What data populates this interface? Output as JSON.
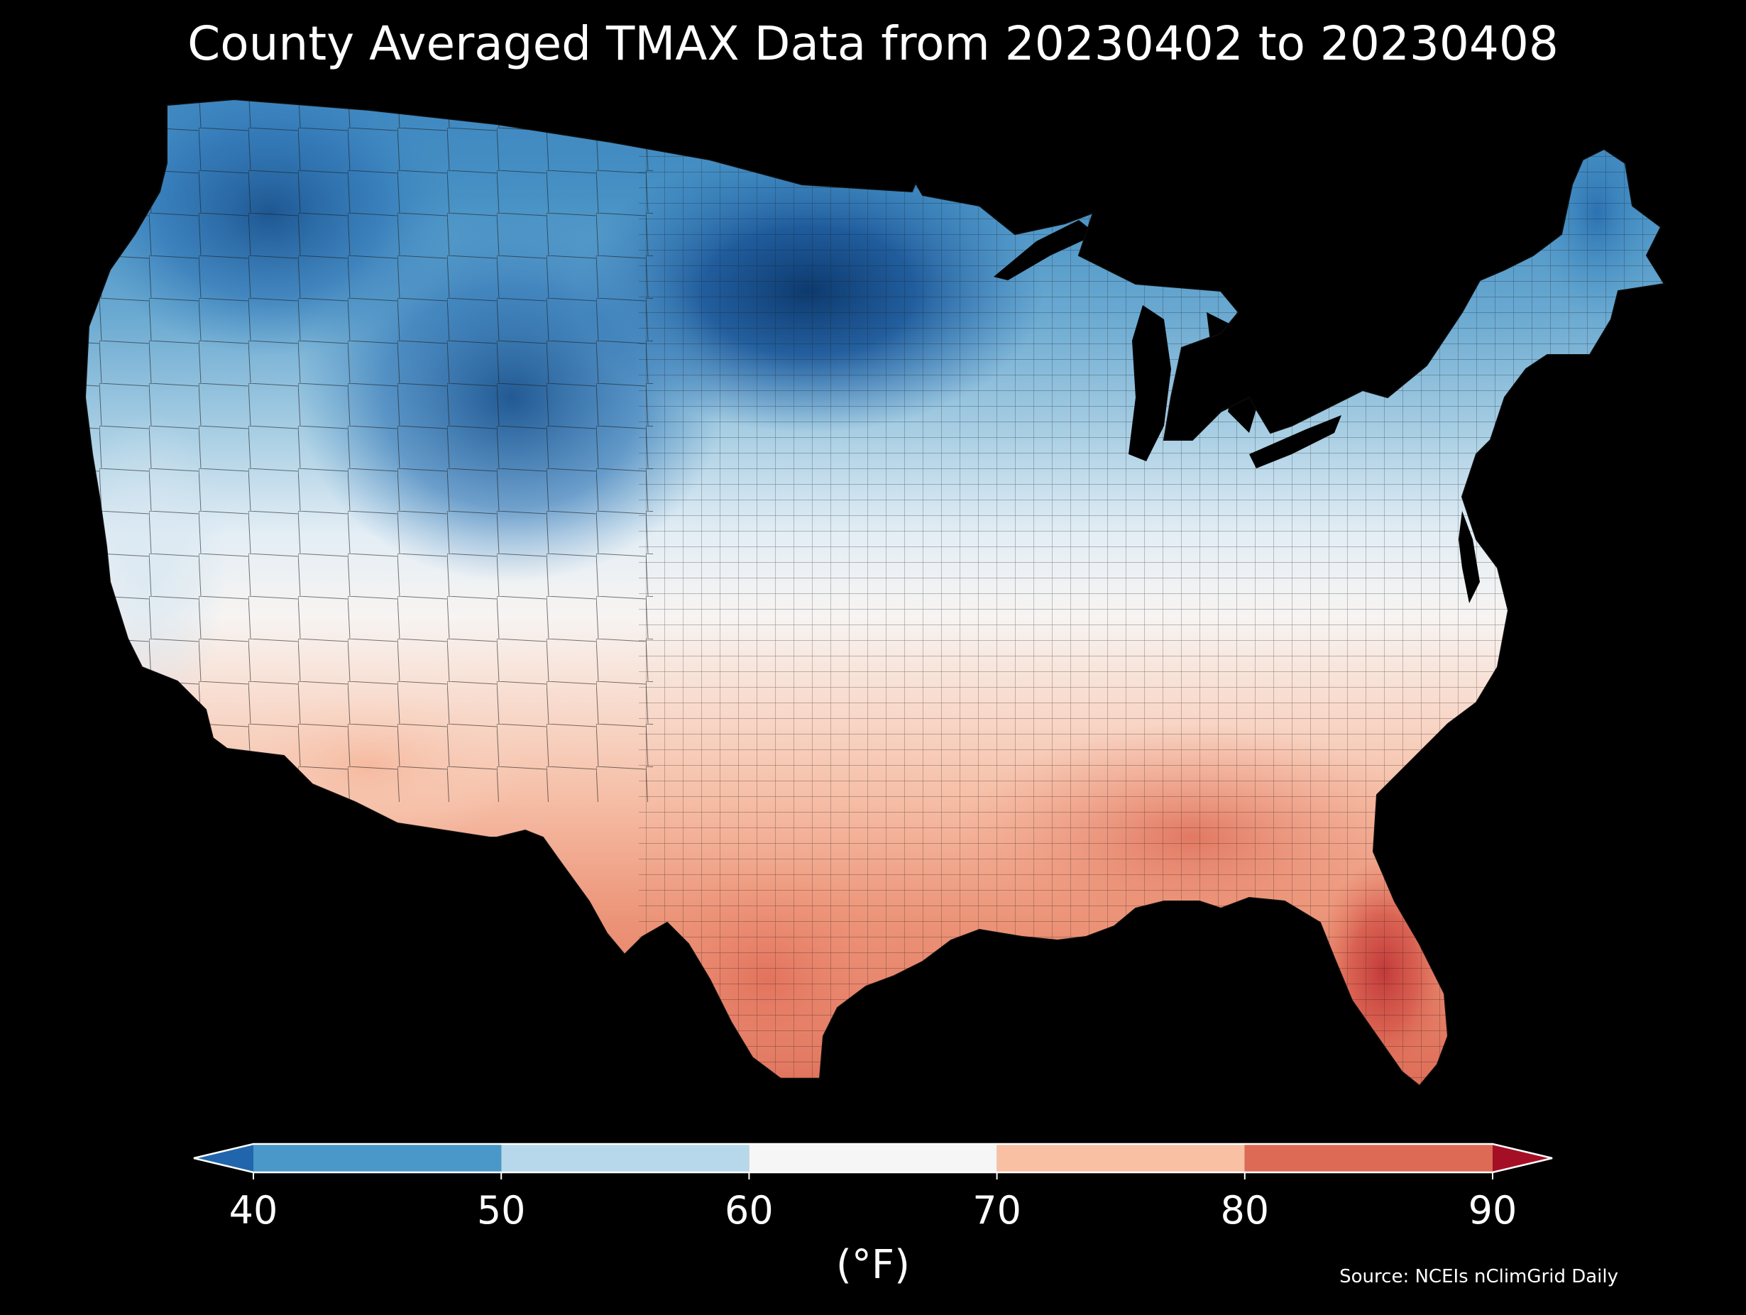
{
  "title": "County Averaged TMAX Data from 20230402 to 20230408",
  "colorbar": {
    "unit_label": "(°F)",
    "ticks": [
      "40",
      "50",
      "60",
      "70",
      "80",
      "90"
    ],
    "bins": [
      {
        "range": [
          40,
          50
        ],
        "color": "#4a98c9"
      },
      {
        "range": [
          50,
          60
        ],
        "color": "#b6d8ea"
      },
      {
        "range": [
          60,
          70
        ],
        "color": "#f7f6f6"
      },
      {
        "range": [
          70,
          80
        ],
        "color": "#f9c0a3"
      },
      {
        "range": [
          80,
          90
        ],
        "color": "#dd6a55"
      }
    ],
    "under_color": "#2166ac",
    "over_color": "#a50f26",
    "extend": "both"
  },
  "source": "Source: NCEIs nClimGrid Daily",
  "map": {
    "region": "contiguous United States",
    "variable": "TMAX",
    "aggregation": "county average",
    "pattern_note": "coldest in northern Plains and upper Midwest (below 40°F), warmest in Florida and south Texas (80–90°F)"
  },
  "colors": {
    "background": "#000000",
    "text": "#ffffff",
    "county_border": "#1a1a1a"
  }
}
